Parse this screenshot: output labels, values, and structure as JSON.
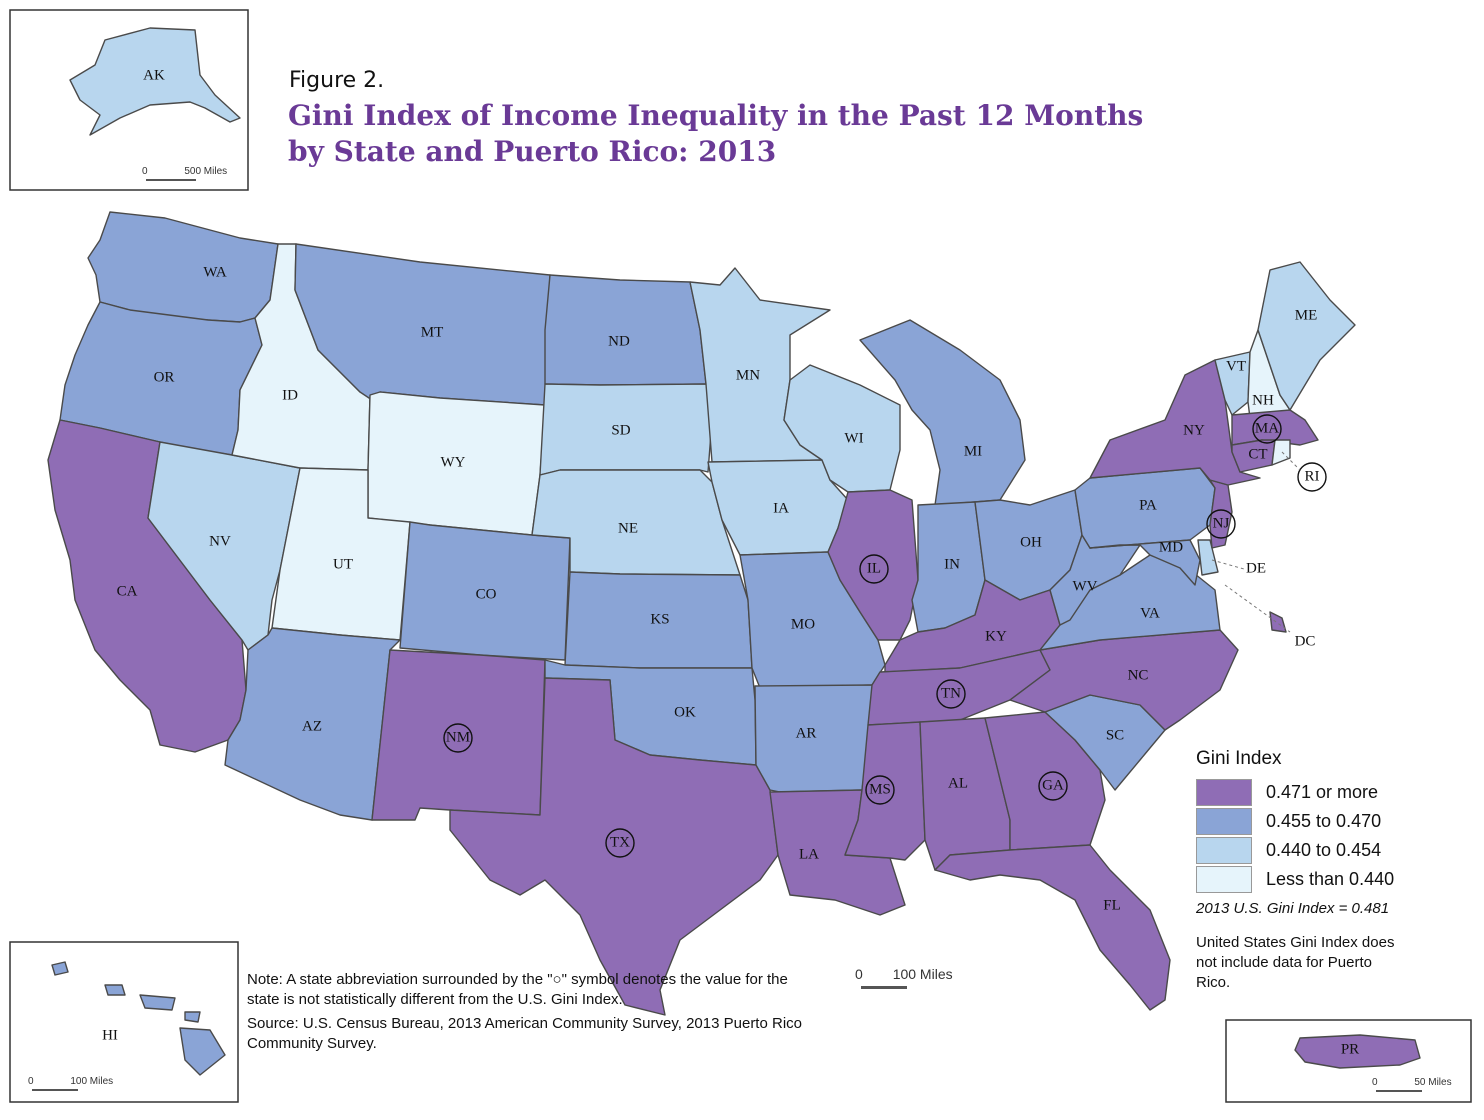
{
  "figure_label": "Figure 2.",
  "title_line1": "Gini Index of Income Inequality in the Past 12 Months",
  "title_line2": "by State and Puerto Rico: 2013",
  "legend": {
    "title": "Gini Index",
    "classes": [
      {
        "label": "0.471 or more",
        "color": "#8f6db5"
      },
      {
        "label": "0.455 to 0.470",
        "color": "#8aa4d6"
      },
      {
        "label": "0.440 to 0.454",
        "color": "#b8d6ee"
      },
      {
        "label": "Less than 0.440",
        "color": "#e6f4fb"
      }
    ],
    "us_gini": "2013 U.S. Gini Index = 0.481",
    "pr_note": "United States Gini Index does not include data for Puerto Rico."
  },
  "note": "Note: A state abbreviation surrounded by the \"○\" symbol denotes the value for the state is not statistically different from the U.S. Gini Index.",
  "source": "Source: U.S. Census Bureau, 2013 American Community Survey, 2013 Puerto Rico Community Survey.",
  "scales": {
    "main_zero": "0",
    "main": "100 Miles",
    "ak_zero": "0",
    "ak": "500 Miles",
    "hi_zero": "0",
    "hi": "100 Miles",
    "pr_zero": "0",
    "pr": "50 Miles"
  },
  "states": {
    "WA": {
      "class": 1
    },
    "OR": {
      "class": 1
    },
    "CA": {
      "class": 0
    },
    "NV": {
      "class": 2
    },
    "ID": {
      "class": 3
    },
    "MT": {
      "class": 1
    },
    "WY": {
      "class": 3
    },
    "UT": {
      "class": 3
    },
    "AZ": {
      "class": 1
    },
    "CO": {
      "class": 1
    },
    "NM": {
      "class": 0,
      "circled": true
    },
    "ND": {
      "class": 1
    },
    "SD": {
      "class": 2
    },
    "NE": {
      "class": 2
    },
    "KS": {
      "class": 1
    },
    "OK": {
      "class": 1
    },
    "TX": {
      "class": 0,
      "circled": true
    },
    "MN": {
      "class": 2
    },
    "IA": {
      "class": 2
    },
    "MO": {
      "class": 1
    },
    "AR": {
      "class": 1
    },
    "LA": {
      "class": 0
    },
    "WI": {
      "class": 2
    },
    "IL": {
      "class": 0,
      "circled": true
    },
    "MI": {
      "class": 1
    },
    "IN": {
      "class": 1
    },
    "OH": {
      "class": 1
    },
    "KY": {
      "class": 0
    },
    "TN": {
      "class": 0,
      "circled": true
    },
    "MS": {
      "class": 0,
      "circled": true
    },
    "AL": {
      "class": 0
    },
    "GA": {
      "class": 0,
      "circled": true
    },
    "FL": {
      "class": 0
    },
    "SC": {
      "class": 1
    },
    "NC": {
      "class": 0
    },
    "VA": {
      "class": 1
    },
    "WV": {
      "class": 1
    },
    "PA": {
      "class": 1
    },
    "NY": {
      "class": 0
    },
    "VT": {
      "class": 2
    },
    "NH": {
      "class": 3
    },
    "ME": {
      "class": 2
    },
    "MA": {
      "class": 0,
      "circled": true
    },
    "RI": {
      "class": 3,
      "circled": true
    },
    "CT": {
      "class": 0
    },
    "NJ": {
      "class": 0,
      "circled": true
    },
    "DE": {
      "class": 2
    },
    "MD": {
      "class": 1
    },
    "DC": {
      "class": 0
    },
    "AK": {
      "class": 2
    },
    "HI": {
      "class": 1
    },
    "PR": {
      "class": 0
    }
  }
}
